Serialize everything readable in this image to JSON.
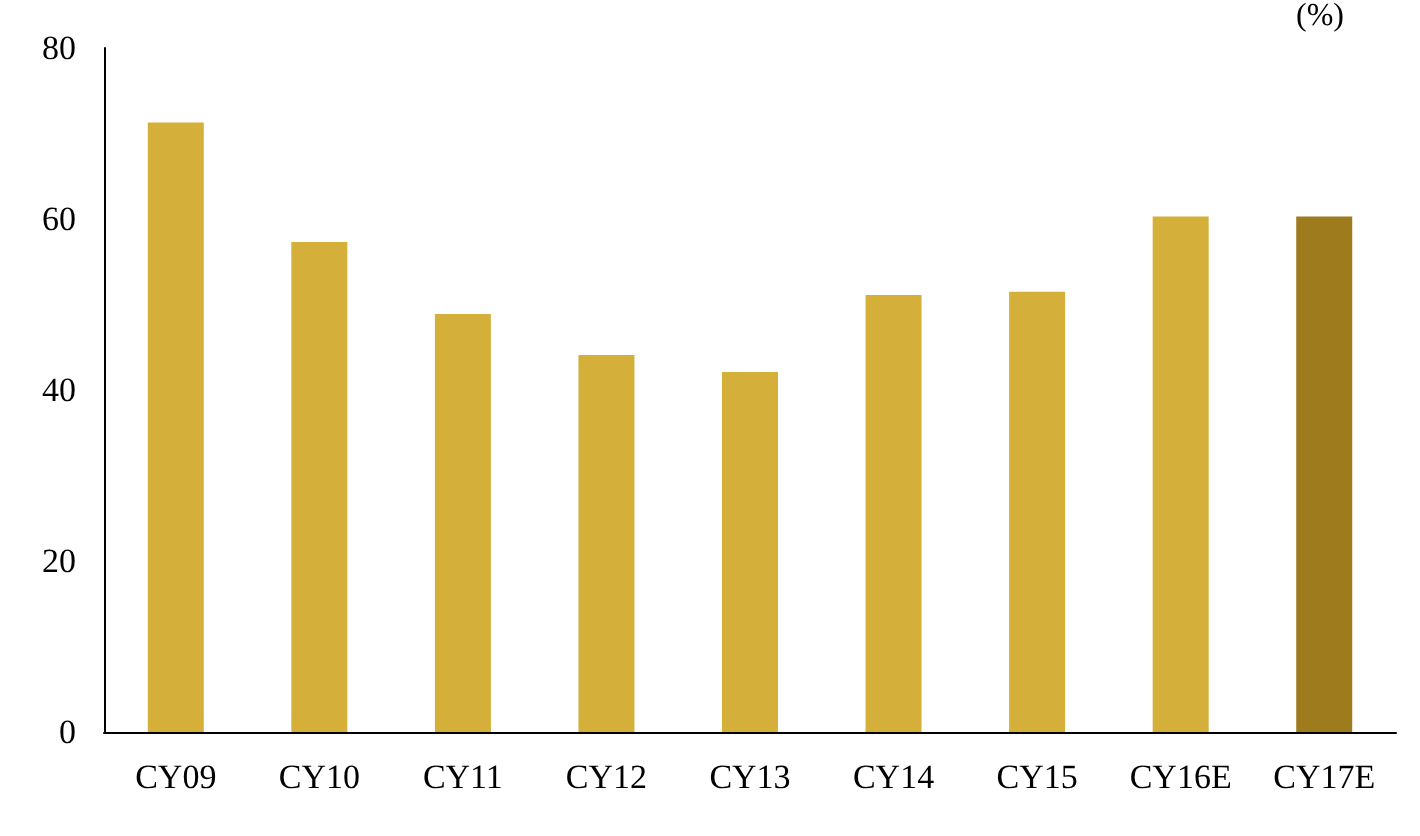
{
  "chart_data": {
    "type": "bar",
    "ylabel": "(%)",
    "categories": [
      "CY09",
      "CY10",
      "CY11",
      "CY12",
      "CY13",
      "CY14",
      "CY15",
      "CY16E",
      "CY17E"
    ],
    "values": [
      71.3,
      57.3,
      48.9,
      44.1,
      42.1,
      51.1,
      51.5,
      60.3,
      60.3
    ],
    "colors": [
      "#d4af3a",
      "#d4af3a",
      "#d4af3a",
      "#d4af3a",
      "#d4af3a",
      "#d4af3a",
      "#d4af3a",
      "#d4af3a",
      "#9e7c1e"
    ],
    "ylim": [
      0,
      80
    ],
    "yticks": [
      0,
      20,
      40,
      60,
      80
    ]
  }
}
